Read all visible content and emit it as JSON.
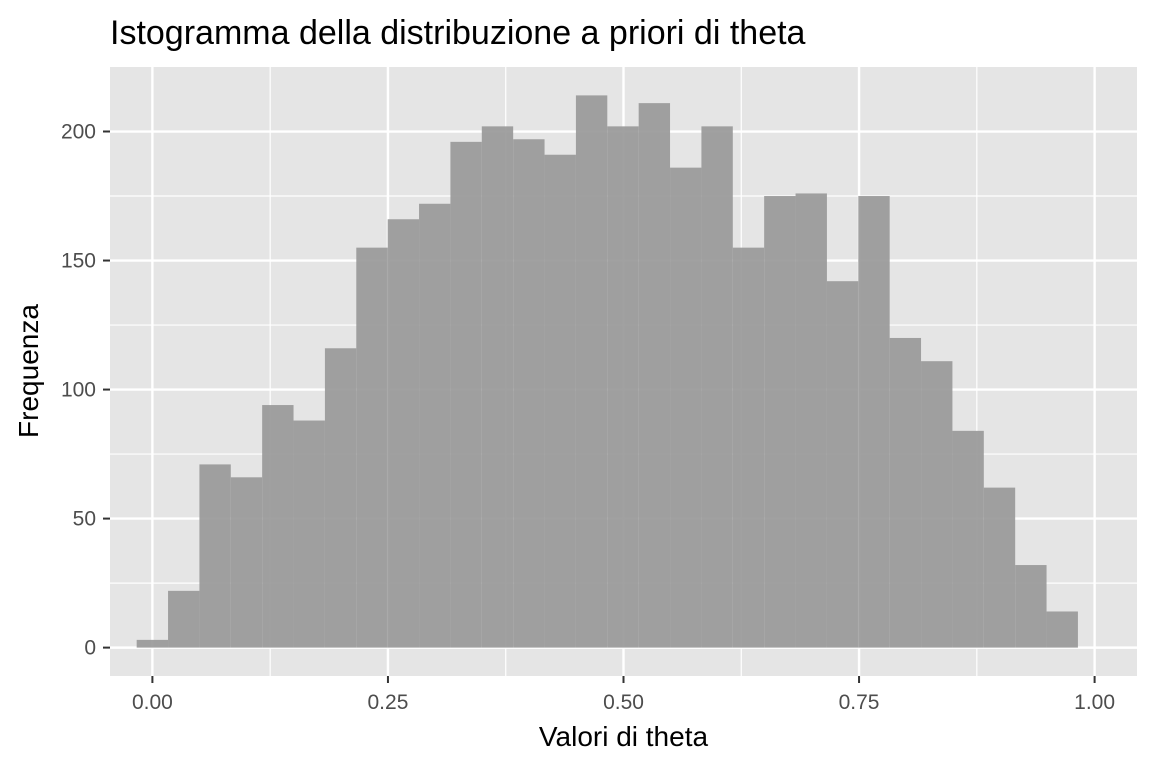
{
  "chart_data": {
    "type": "bar",
    "title": "Istogramma della distribuzione a priori di theta",
    "xlabel": "Valori di theta",
    "ylabel": "Frequenza",
    "xlim": [
      -0.045,
      1.045
    ],
    "ylim": [
      -11,
      225
    ],
    "x_ticks": [
      0,
      0.25,
      0.5,
      0.75,
      1
    ],
    "x_tick_labels": [
      "0.00",
      "0.25",
      "0.50",
      "0.75",
      "1.00"
    ],
    "y_ticks": [
      0,
      50,
      100,
      150,
      200
    ],
    "y_tick_labels": [
      "0",
      "50",
      "100",
      "150",
      "200"
    ],
    "grid": true,
    "background_color": "#e5e5e5",
    "grid_color": "#ffffff",
    "bar_color": "#999999",
    "bins": {
      "start": -0.0167,
      "width": 0.0333,
      "counts": [
        3,
        22,
        71,
        66,
        94,
        88,
        116,
        155,
        166,
        172,
        196,
        202,
        197,
        191,
        214,
        202,
        211,
        186,
        202,
        155,
        175,
        176,
        142,
        175,
        120,
        111,
        84,
        62,
        32,
        14
      ]
    }
  }
}
